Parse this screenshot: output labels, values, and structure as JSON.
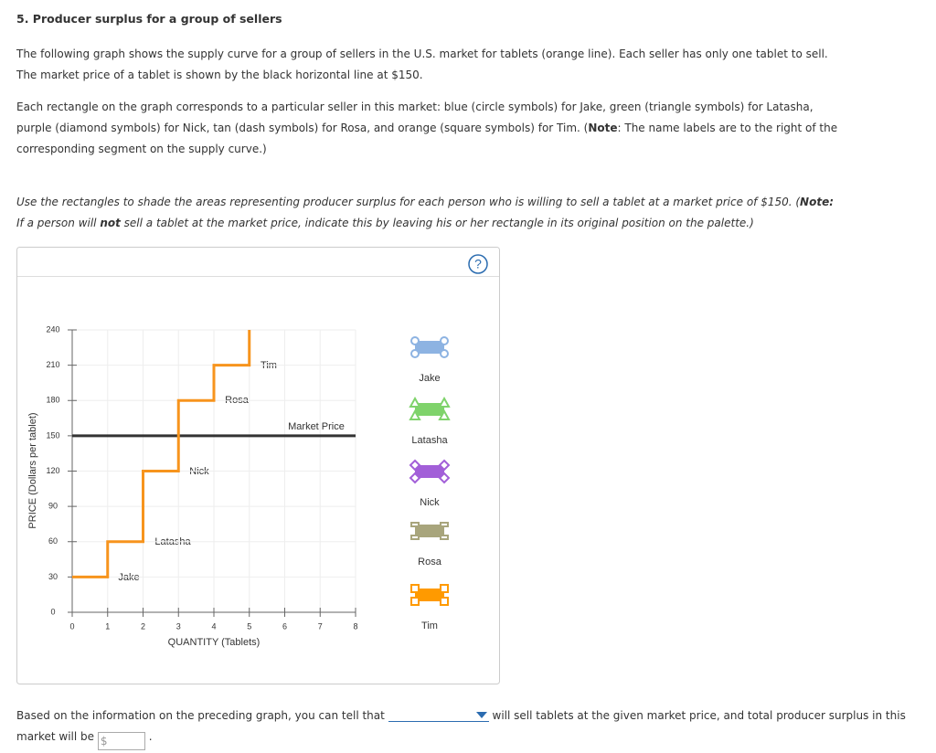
{
  "header": {
    "title": "5. Producer surplus for a group of sellers"
  },
  "paragraphs": [
    {
      "italic": false,
      "runs": [
        {
          "text": "The following graph shows the supply curve for a group of sellers in the U.S. market for tablets (orange line). Each seller has only one tablet to sell. The market price of a tablet is shown by the black horizontal line at $150."
        }
      ]
    },
    {
      "italic": false,
      "runs": [
        {
          "text": "Each rectangle on the graph corresponds to a particular seller in this market: blue (circle symbols) for Jake, green (triangle symbols) for Latasha, purple (diamond symbols) for Nick, tan (dash symbols) for Rosa, and orange (square symbols) for Tim. ("
        },
        {
          "text": "Note",
          "bold": true
        },
        {
          "text": ": The name labels are to the right of the corresponding segment on the supply curve.)"
        }
      ]
    },
    {
      "italic": true,
      "runs": [
        {
          "text": "Use the rectangles to shade the areas representing producer surplus for each person who is willing to sell a tablet at a market price of $150. ("
        },
        {
          "text": "Note:",
          "bold": true
        },
        {
          "text": " If a person will "
        },
        {
          "text": "not",
          "bold": true
        },
        {
          "text": " sell a tablet at the market price, indicate this by leaving his or her rectangle in its original position on the palette.)"
        }
      ]
    }
  ],
  "help": "?",
  "chart_data": {
    "type": "step-line",
    "x_label": "QUANTITY (Tablets)",
    "y_label": "PRICE (Dollars per tablet)",
    "xlim": [
      0,
      8
    ],
    "xticks": [
      0,
      1,
      2,
      3,
      4,
      5,
      6,
      7,
      8
    ],
    "ylim": [
      0,
      240
    ],
    "yticks": [
      0,
      30,
      60,
      90,
      120,
      150,
      180,
      210,
      240
    ],
    "grid": true,
    "supply": {
      "color": "#f7941d",
      "x": [
        0,
        1,
        1,
        2,
        2,
        3,
        3,
        4,
        4,
        5,
        5
      ],
      "y": [
        30,
        30,
        60,
        60,
        120,
        120,
        180,
        180,
        210,
        210,
        240
      ]
    },
    "market_price": {
      "value": 150,
      "color": "#333333"
    },
    "annotations": [
      "Jake",
      "Latasha",
      "Nick",
      "Rosa",
      "Tim",
      "Market Price"
    ]
  },
  "palette": [
    {
      "name": "Jake",
      "color": "#8db3e2",
      "marker": "circle"
    },
    {
      "name": "Latasha",
      "color": "#7fd36b",
      "marker": "triangle"
    },
    {
      "name": "Nick",
      "color": "#a25fd8",
      "marker": "diamond"
    },
    {
      "name": "Rosa",
      "color": "#a8a57c",
      "marker": "dash"
    },
    {
      "name": "Tim",
      "color": "#ff9a00",
      "marker": "square"
    }
  ],
  "question": {
    "before": "Based on the information on the preceding graph, you can tell that",
    "after": "will sell tablets at the given market price, and total producer surplus in this market will be",
    "currency": "$",
    "end": "."
  }
}
